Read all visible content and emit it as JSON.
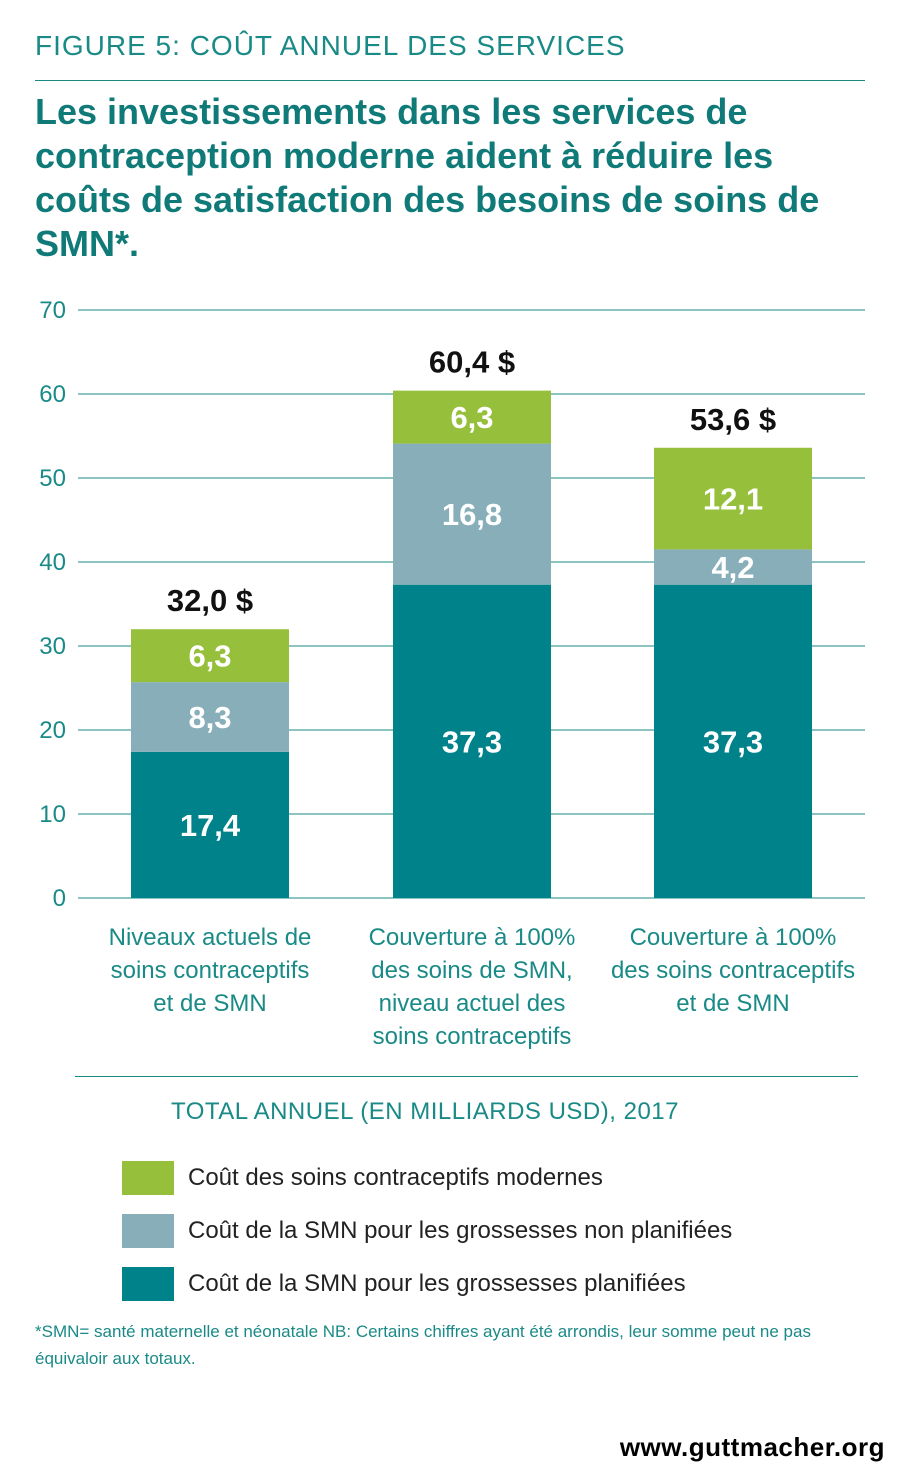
{
  "header": {
    "figure_label": "FIGURE 5: COÛT ANNUEL DES SERVICES",
    "headline": "Les investissements dans les services de contraception moderne aident à réduire les coûts de satisfaction des besoins de soins de SMN*."
  },
  "chart_data": {
    "type": "bar",
    "stacked": true,
    "categories": [
      [
        "Niveaux actuels de",
        "soins contraceptifs",
        "et de SMN"
      ],
      [
        "Couverture à 100%",
        "des soins de SMN,",
        "niveau actuel des",
        "soins contraceptifs"
      ],
      [
        "Couverture à 100%",
        "des soins contraceptifs",
        "et de SMN"
      ]
    ],
    "series": [
      {
        "name": "Coût de la SMN pour les grossesses planifiées",
        "values": [
          17.4,
          37.3,
          37.3
        ],
        "labels": [
          "17,4",
          "37,3",
          "37,3"
        ],
        "color": "#00828a"
      },
      {
        "name": "Coût de la SMN pour les grossesses non planifiées",
        "values": [
          8.3,
          16.8,
          4.2
        ],
        "labels": [
          "8,3",
          "16,8",
          "4,2"
        ],
        "color": "#88afb9"
      },
      {
        "name": "Coût des soins contraceptifs modernes",
        "values": [
          6.3,
          6.3,
          12.1
        ],
        "labels": [
          "6,3",
          "6,3",
          "12,1"
        ],
        "color": "#96c03c"
      }
    ],
    "totals": [
      "32,0 $",
      "60,4 $",
      "53,6 $"
    ],
    "ylim": [
      0,
      70
    ],
    "yticks": [
      0,
      10,
      20,
      30,
      40,
      50,
      60,
      70
    ],
    "grid": true,
    "xlabel": "TOTAL ANNUEL (EN MILLIARDS USD), 2017"
  },
  "legend": [
    {
      "label": "Coût des soins contraceptifs modernes",
      "color": "#96c03c"
    },
    {
      "label": "Coût de la SMN pour les grossesses non planifiées",
      "color": "#88afb9"
    },
    {
      "label": "Coût de la SMN pour les grossesses planifiées",
      "color": "#00828a"
    }
  ],
  "footnote": "*SMN= santé maternelle et néonatale NB: Certains chiffres ayant été arrondis, leur somme peut ne pas équivaloir aux totaux.",
  "source": "www.guttmacher.org"
}
